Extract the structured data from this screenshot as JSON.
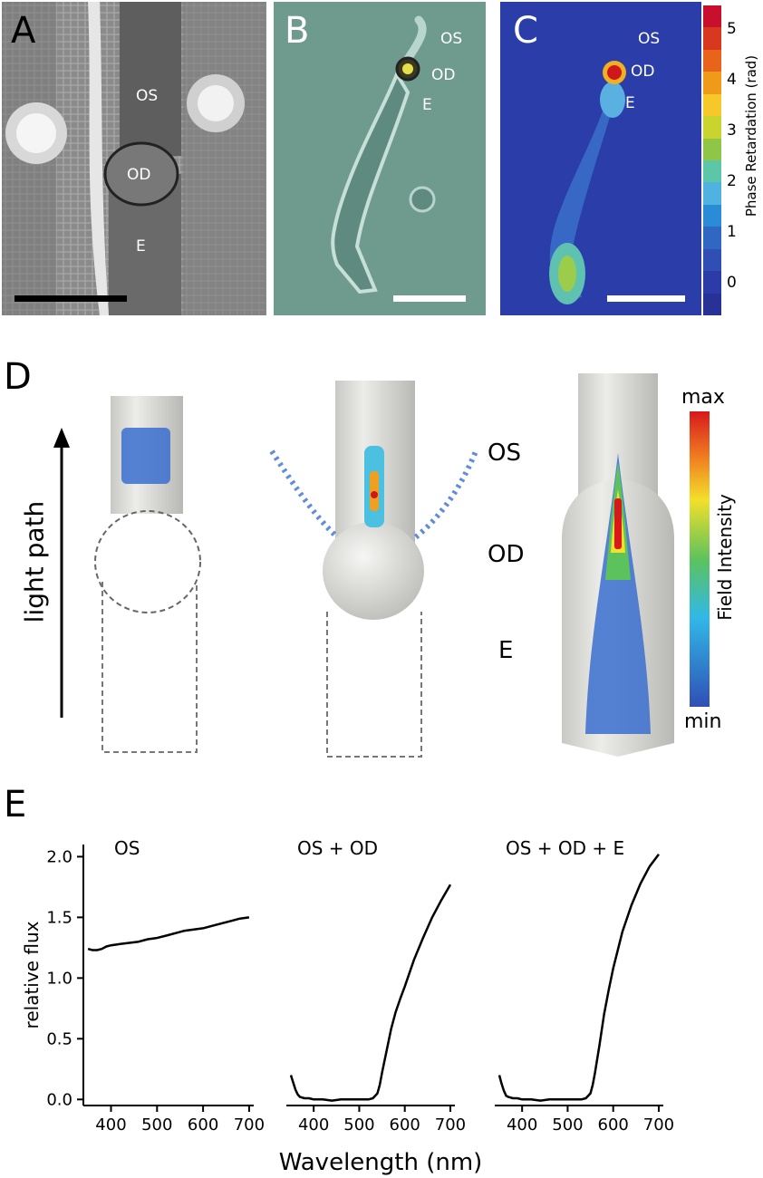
{
  "panels": {
    "A": {
      "letter": "A",
      "labels": [
        "OS",
        "OD",
        "E"
      ]
    },
    "B": {
      "letter": "B",
      "labels": [
        "OS",
        "OD",
        "E"
      ]
    },
    "C": {
      "letter": "C",
      "labels": [
        "OS",
        "OD",
        "E"
      ],
      "colorbar": {
        "title": "Phase Retardation (rad)",
        "ticks": [
          "5",
          "4",
          "3",
          "2",
          "1",
          "0"
        ],
        "colors": [
          "#c8102e",
          "#d93820",
          "#e8641a",
          "#f09a1a",
          "#f7c82a",
          "#c9d42e",
          "#8fc645",
          "#5cc7a8",
          "#4fb2e0",
          "#2a8cd6",
          "#2f67c2",
          "#2f4fb4",
          "#2b3ca8",
          "#283296"
        ]
      }
    },
    "D": {
      "letter": "D",
      "light_path": "light path",
      "labels": [
        "OS",
        "OD",
        "E"
      ],
      "colorbar": {
        "title": "Field Intensity",
        "max": "max",
        "min": "min"
      }
    },
    "E": {
      "letter": "E"
    }
  },
  "chart_data": [
    {
      "type": "line",
      "title": "OS",
      "xlabel": "Wavelength (nm)",
      "ylabel": "relative flux",
      "xlim": [
        340,
        710
      ],
      "ylim": [
        -0.05,
        2.1
      ],
      "xticks": [
        400,
        500,
        600,
        700
      ],
      "yticks": [
        0.0,
        0.5,
        1.0,
        1.5,
        2.0
      ],
      "ytick_labels": [
        "0.0",
        "0.5",
        "1.0",
        "1.5",
        "2.0"
      ],
      "x": [
        350,
        360,
        370,
        380,
        390,
        400,
        420,
        440,
        460,
        480,
        500,
        520,
        540,
        560,
        580,
        600,
        620,
        640,
        660,
        680,
        700
      ],
      "y": [
        1.24,
        1.23,
        1.23,
        1.24,
        1.26,
        1.27,
        1.28,
        1.29,
        1.3,
        1.32,
        1.33,
        1.35,
        1.37,
        1.39,
        1.4,
        1.41,
        1.43,
        1.45,
        1.47,
        1.49,
        1.5
      ]
    },
    {
      "type": "line",
      "title": "OS + OD",
      "xlabel": "Wavelength (nm)",
      "ylabel": "",
      "xlim": [
        340,
        710
      ],
      "ylim": [
        -0.05,
        2.1
      ],
      "xticks": [
        400,
        500,
        600,
        700
      ],
      "x": [
        350,
        355,
        360,
        365,
        370,
        380,
        390,
        400,
        420,
        440,
        460,
        480,
        500,
        520,
        530,
        540,
        545,
        550,
        560,
        570,
        580,
        590,
        600,
        620,
        640,
        660,
        680,
        700
      ],
      "y": [
        0.2,
        0.14,
        0.08,
        0.04,
        0.02,
        0.01,
        0.01,
        0.0,
        0.0,
        -0.01,
        0.0,
        0.0,
        0.0,
        0.0,
        0.01,
        0.05,
        0.12,
        0.22,
        0.4,
        0.58,
        0.72,
        0.83,
        0.93,
        1.15,
        1.33,
        1.5,
        1.64,
        1.77
      ]
    },
    {
      "type": "line",
      "title": "OS + OD + E",
      "xlabel": "Wavelength (nm)",
      "ylabel": "",
      "xlim": [
        340,
        710
      ],
      "ylim": [
        -0.05,
        2.1
      ],
      "xticks": [
        400,
        500,
        600,
        700
      ],
      "x": [
        350,
        355,
        360,
        365,
        370,
        380,
        390,
        400,
        420,
        440,
        460,
        480,
        500,
        520,
        530,
        540,
        550,
        555,
        560,
        570,
        580,
        590,
        600,
        620,
        640,
        660,
        680,
        700
      ],
      "y": [
        0.2,
        0.13,
        0.07,
        0.03,
        0.02,
        0.01,
        0.01,
        0.0,
        0.0,
        -0.01,
        0.0,
        0.0,
        0.0,
        0.0,
        0.0,
        0.01,
        0.05,
        0.12,
        0.22,
        0.45,
        0.7,
        0.9,
        1.08,
        1.38,
        1.6,
        1.78,
        1.92,
        2.02
      ]
    }
  ],
  "shared_xlabel": "Wavelength (nm)"
}
